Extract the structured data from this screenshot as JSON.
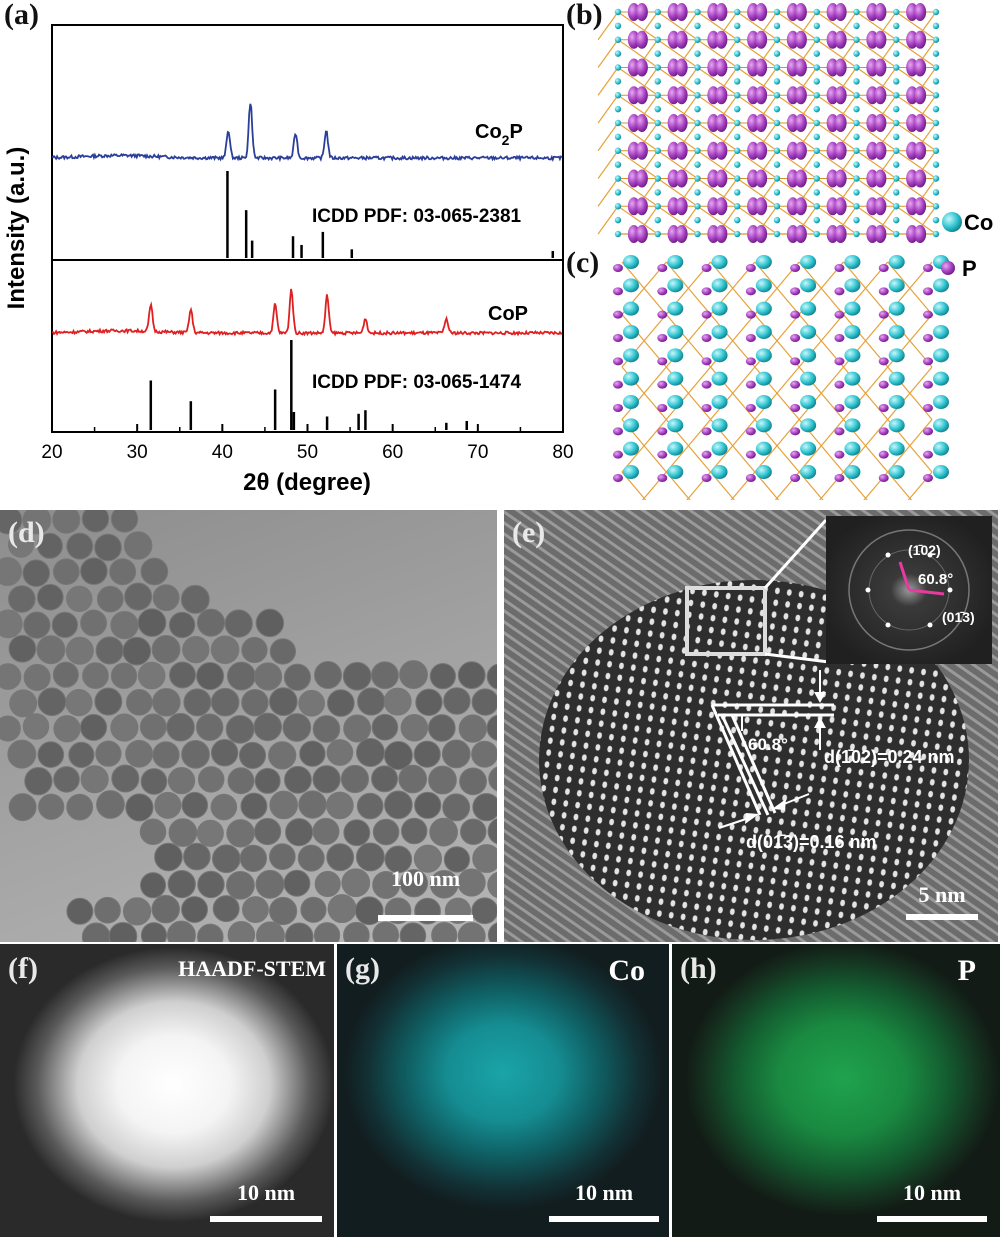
{
  "panels": {
    "a": {
      "label": "(a)",
      "ylabel": "Intensity (a.u.)",
      "xlabel": "2θ (degree)",
      "ticks": [
        "20",
        "30",
        "40",
        "50",
        "60",
        "70",
        "80"
      ],
      "co2p_label_main": "Co",
      "co2p_label_sub": "2",
      "co2p_label_end": "P",
      "cop_label": "CoP",
      "co2p_ref": "ICDD PDF: 03-065-2381",
      "cop_ref": "ICDD PDF: 03-065-1474"
    },
    "b": {
      "label": "(b)"
    },
    "c": {
      "label": "(c)"
    },
    "legend": {
      "co": "Co",
      "p": "P",
      "co_color": "#2ec4d0",
      "p_color": "#a43ec0"
    },
    "d": {
      "label": "(d)",
      "scale": "100 nm"
    },
    "e": {
      "label": "(e)",
      "scale": "5 nm",
      "angle": "60.8°",
      "d102": "d(1̄02)=0.24 nm",
      "d013": "d(01̄3)=0.16 nm",
      "fft_102": "(1̄02)",
      "fft_013": "(01̄3)",
      "fft_angle": "60.8°"
    },
    "f": {
      "label": "(f)",
      "title": "HAADF-STEM",
      "scale": "10 nm"
    },
    "g": {
      "label": "(g)",
      "title": "Co",
      "scale": "10 nm"
    },
    "h": {
      "label": "(h)",
      "title": "P",
      "scale": "10 nm"
    }
  },
  "chart_data": {
    "type": "line",
    "xlabel": "2θ (degree)",
    "ylabel": "Intensity (a.u.)",
    "xlim": [
      20,
      80
    ],
    "series": [
      {
        "name": "Co2P",
        "color": "#2b3f9a",
        "peaks": [
          [
            40.7,
            0.45
          ],
          [
            43.3,
            0.9
          ],
          [
            48.6,
            0.4
          ],
          [
            52.2,
            0.45
          ]
        ]
      },
      {
        "name": "CoP",
        "color": "#e02020",
        "peaks": [
          [
            31.6,
            0.45
          ],
          [
            36.3,
            0.4
          ],
          [
            46.2,
            0.5
          ],
          [
            48.1,
            0.75
          ],
          [
            52.3,
            0.65
          ],
          [
            56.8,
            0.25
          ],
          [
            66.3,
            0.25
          ]
        ]
      }
    ],
    "references": [
      {
        "name": "ICDD PDF: 03-065-2381",
        "lines": [
          [
            40.6,
            1.0
          ],
          [
            42.8,
            0.55
          ],
          [
            43.5,
            0.2
          ],
          [
            48.3,
            0.25
          ],
          [
            49.3,
            0.15
          ],
          [
            51.8,
            0.3
          ],
          [
            55.2,
            0.1
          ],
          [
            78.8,
            0.08
          ]
        ]
      },
      {
        "name": "ICDD PDF: 03-065-1474",
        "lines": [
          [
            31.6,
            0.55
          ],
          [
            36.3,
            0.32
          ],
          [
            46.2,
            0.45
          ],
          [
            48.1,
            1.0
          ],
          [
            48.4,
            0.2
          ],
          [
            52.3,
            0.15
          ],
          [
            56.0,
            0.18
          ],
          [
            56.8,
            0.22
          ],
          [
            66.3,
            0.08
          ],
          [
            68.7,
            0.1
          ]
        ]
      }
    ]
  }
}
